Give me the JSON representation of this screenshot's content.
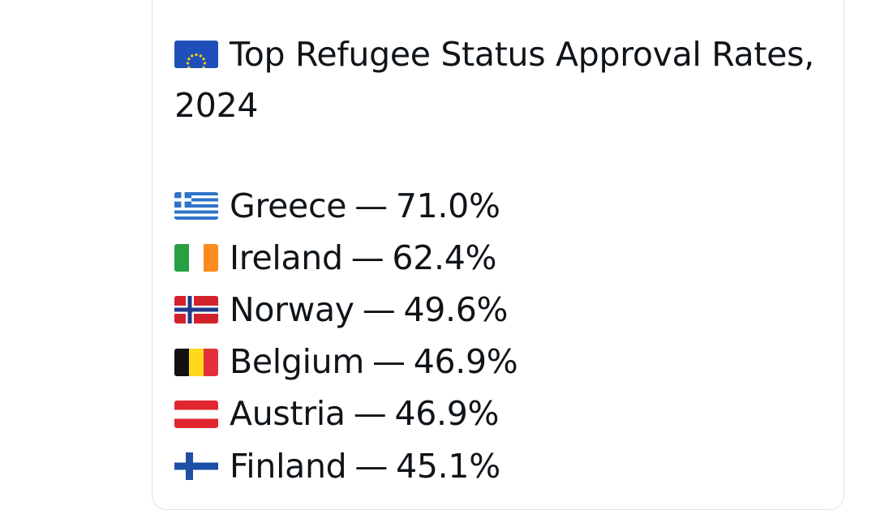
{
  "post": {
    "title": "Top Refugee Status Approval Rates, 2024",
    "title_flag_icon": "eu-flag-icon",
    "separator": "—",
    "entries": [
      {
        "country": "Greece",
        "value": "71.0%",
        "flag_icon": "greece-flag-icon"
      },
      {
        "country": "Ireland",
        "value": "62.4%",
        "flag_icon": "ireland-flag-icon"
      },
      {
        "country": "Norway",
        "value": "49.6%",
        "flag_icon": "norway-flag-icon"
      },
      {
        "country": "Belgium",
        "value": "46.9%",
        "flag_icon": "belgium-flag-icon"
      },
      {
        "country": "Austria",
        "value": "46.9%",
        "flag_icon": "austria-flag-icon"
      },
      {
        "country": "Finland",
        "value": "45.1%",
        "flag_icon": "finland-flag-icon"
      }
    ]
  },
  "colors": {
    "text": "#0f1419",
    "card_border": "#dfe3e7",
    "background": "#ffffff"
  }
}
